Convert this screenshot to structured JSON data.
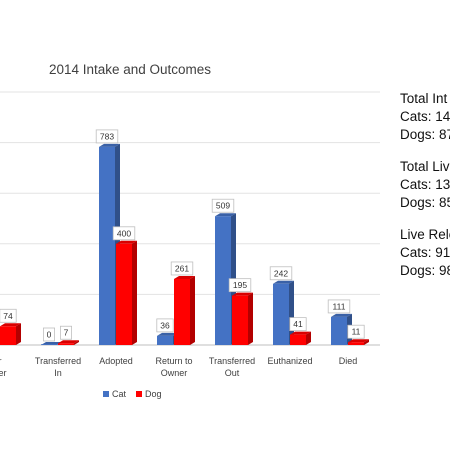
{
  "chart_data": {
    "type": "bar",
    "title": "2014 Intake and Outcomes",
    "categories": [
      "",
      "Transferred In",
      "Adopted",
      "Return to Owner",
      "Transferred Out",
      "Euthanized",
      "Died"
    ],
    "category_label_lines": [
      [
        "r",
        "ner"
      ],
      [
        "Transferred",
        "In"
      ],
      [
        "Adopted"
      ],
      [
        "Return to",
        "Owner"
      ],
      [
        "Transferred",
        "Out"
      ],
      [
        "Euthanized"
      ],
      [
        "Died"
      ]
    ],
    "series": [
      {
        "name": "Cat",
        "values": [
          null,
          0,
          783,
          36,
          509,
          242,
          111
        ],
        "color": "#4472C4"
      },
      {
        "name": "Dog",
        "values": [
          74,
          7,
          400,
          261,
          195,
          41,
          11
        ],
        "color": "#FF0000"
      }
    ],
    "data_labels": {
      "Cat": [
        "",
        "0",
        "783",
        "36",
        "509",
        "242",
        "111"
      ],
      "Dog": [
        "74",
        "7",
        "400",
        "261",
        "195",
        "41",
        "11"
      ]
    },
    "ylim": [
      0,
      1000
    ],
    "grid": true,
    "legend_position": "bottom",
    "xlabel": "",
    "ylabel": ""
  },
  "side_stats": [
    {
      "heading": "Total Int",
      "lines": [
        "Cats: 14",
        "Dogs: 87"
      ]
    },
    {
      "heading": "Total Liv",
      "lines": [
        "Cats: 13",
        "Dogs: 85"
      ]
    },
    {
      "heading": "Live Rele",
      "lines": [
        "Cats: 91",
        "Dogs: 98"
      ]
    }
  ]
}
